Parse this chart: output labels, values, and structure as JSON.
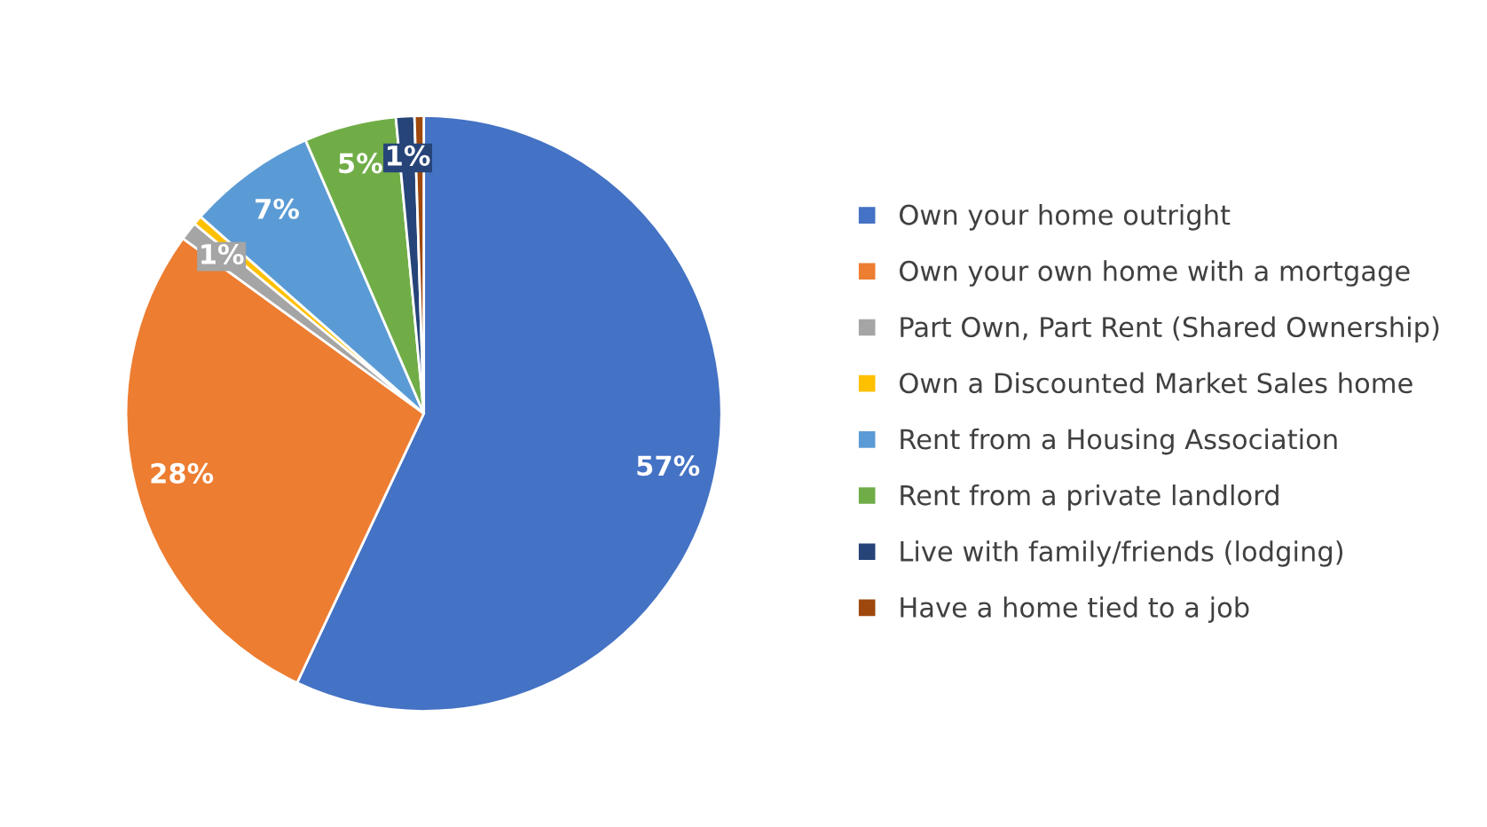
{
  "chart_data": {
    "type": "pie",
    "categories": [
      "Own your home outright",
      "Own your own home with a mortgage",
      "Part Own, Part Rent (Shared Ownership)",
      "Own a Discounted Market Sales home",
      "Rent from a Housing Association",
      "Rent from a private landlord",
      "Live with family/friends (lodging)",
      "Have a home tied to a job"
    ],
    "values": [
      57,
      28,
      1,
      0.5,
      7,
      5,
      1,
      0.5
    ],
    "value_labels": [
      "57%",
      "28%",
      "1%",
      null,
      "7%",
      "5%",
      "1%",
      null
    ],
    "colors": [
      "#4472c4",
      "#ed7d31",
      "#a5a5a5",
      "#ffc000",
      "#5b9bd5",
      "#70ad47",
      "#264478",
      "#9e480e"
    ],
    "legend": "right"
  }
}
